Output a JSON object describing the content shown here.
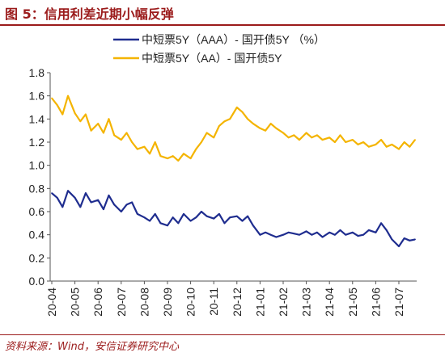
{
  "figure_title": "图 5：信用利差近期小幅反弹",
  "source_note": "资料来源：Wind，安信证券研究中心",
  "chart_data": {
    "type": "line",
    "title": "",
    "xlabel": "",
    "ylabel": "",
    "ylim": [
      0,
      1.8
    ],
    "yticks": [
      "0.0",
      "0.2",
      "0.4",
      "0.6",
      "0.8",
      "1.0",
      "1.2",
      "1.4",
      "1.6",
      "1.8"
    ],
    "x_tick_labels": [
      "20-04",
      "20-05",
      "20-06",
      "20-07",
      "20-08",
      "20-09",
      "20-10",
      "20-11",
      "20-12",
      "21-01",
      "21-02",
      "21-03",
      "21-04",
      "21-05",
      "21-06",
      "21-07"
    ],
    "legend_position": "top-center",
    "grid": false,
    "series": [
      {
        "name": "中短票5Y（AAA）- 国开债5Y （%）",
        "color": "#1f2d8f",
        "x": [
          "2020-04-01",
          "2020-04-08",
          "2020-04-15",
          "2020-04-22",
          "2020-05-01",
          "2020-05-08",
          "2020-05-15",
          "2020-05-22",
          "2020-06-01",
          "2020-06-08",
          "2020-06-15",
          "2020-06-22",
          "2020-07-01",
          "2020-07-08",
          "2020-07-15",
          "2020-07-22",
          "2020-08-01",
          "2020-08-08",
          "2020-08-15",
          "2020-08-22",
          "2020-09-01",
          "2020-09-08",
          "2020-09-15",
          "2020-09-22",
          "2020-10-01",
          "2020-10-08",
          "2020-10-15",
          "2020-10-22",
          "2020-11-01",
          "2020-11-08",
          "2020-11-15",
          "2020-11-22",
          "2020-12-01",
          "2020-12-08",
          "2020-12-15",
          "2020-12-22",
          "2021-01-01",
          "2021-01-08",
          "2021-01-15",
          "2021-01-22",
          "2021-02-01",
          "2021-02-08",
          "2021-02-15",
          "2021-02-22",
          "2021-03-01",
          "2021-03-08",
          "2021-03-15",
          "2021-03-22",
          "2021-04-01",
          "2021-04-08",
          "2021-04-15",
          "2021-04-22",
          "2021-05-01",
          "2021-05-08",
          "2021-05-15",
          "2021-05-22",
          "2021-06-01",
          "2021-06-08",
          "2021-06-15",
          "2021-06-22",
          "2021-07-01",
          "2021-07-08",
          "2021-07-15",
          "2021-07-22"
        ],
        "values": [
          0.76,
          0.72,
          0.64,
          0.78,
          0.72,
          0.64,
          0.76,
          0.68,
          0.7,
          0.62,
          0.74,
          0.66,
          0.6,
          0.66,
          0.68,
          0.58,
          0.55,
          0.52,
          0.58,
          0.5,
          0.48,
          0.55,
          0.5,
          0.58,
          0.52,
          0.55,
          0.6,
          0.56,
          0.54,
          0.58,
          0.5,
          0.55,
          0.56,
          0.52,
          0.56,
          0.48,
          0.4,
          0.42,
          0.4,
          0.38,
          0.4,
          0.42,
          0.41,
          0.4,
          0.43,
          0.4,
          0.42,
          0.38,
          0.42,
          0.4,
          0.44,
          0.4,
          0.42,
          0.39,
          0.4,
          0.44,
          0.42,
          0.5,
          0.44,
          0.36,
          0.3,
          0.37,
          0.35,
          0.36
        ]
      },
      {
        "name": "中短票5Y（AA）- 国开债5Y",
        "color": "#f4b400",
        "x": [
          "2020-04-01",
          "2020-04-08",
          "2020-04-15",
          "2020-04-22",
          "2020-05-01",
          "2020-05-08",
          "2020-05-15",
          "2020-05-22",
          "2020-06-01",
          "2020-06-08",
          "2020-06-15",
          "2020-06-22",
          "2020-07-01",
          "2020-07-08",
          "2020-07-15",
          "2020-07-22",
          "2020-08-01",
          "2020-08-08",
          "2020-08-15",
          "2020-08-22",
          "2020-09-01",
          "2020-09-08",
          "2020-09-15",
          "2020-09-22",
          "2020-10-01",
          "2020-10-08",
          "2020-10-15",
          "2020-10-22",
          "2020-11-01",
          "2020-11-08",
          "2020-11-15",
          "2020-11-22",
          "2020-12-01",
          "2020-12-08",
          "2020-12-15",
          "2020-12-22",
          "2021-01-01",
          "2021-01-08",
          "2021-01-15",
          "2021-01-22",
          "2021-02-01",
          "2021-02-08",
          "2021-02-15",
          "2021-02-22",
          "2021-03-01",
          "2021-03-08",
          "2021-03-15",
          "2021-03-22",
          "2021-04-01",
          "2021-04-08",
          "2021-04-15",
          "2021-04-22",
          "2021-05-01",
          "2021-05-08",
          "2021-05-15",
          "2021-05-22",
          "2021-06-01",
          "2021-06-08",
          "2021-06-15",
          "2021-06-22",
          "2021-07-01",
          "2021-07-08",
          "2021-07-15",
          "2021-07-22"
        ],
        "values": [
          1.58,
          1.52,
          1.44,
          1.6,
          1.45,
          1.38,
          1.44,
          1.3,
          1.36,
          1.28,
          1.4,
          1.26,
          1.22,
          1.28,
          1.2,
          1.14,
          1.16,
          1.1,
          1.2,
          1.08,
          1.06,
          1.08,
          1.04,
          1.1,
          1.06,
          1.14,
          1.2,
          1.28,
          1.24,
          1.34,
          1.38,
          1.4,
          1.5,
          1.46,
          1.4,
          1.36,
          1.32,
          1.3,
          1.36,
          1.32,
          1.28,
          1.24,
          1.26,
          1.22,
          1.28,
          1.24,
          1.26,
          1.22,
          1.24,
          1.2,
          1.26,
          1.2,
          1.22,
          1.18,
          1.2,
          1.16,
          1.18,
          1.22,
          1.16,
          1.18,
          1.14,
          1.2,
          1.16,
          1.22
        ]
      }
    ]
  }
}
